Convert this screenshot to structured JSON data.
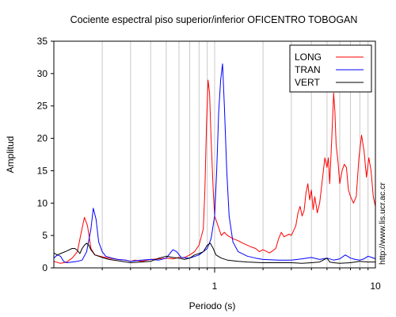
{
  "chart_data": {
    "type": "line",
    "title": "Cociente espectral piso superior/inferior OFICENTRO TOBOGAN",
    "xlabel": "Periodo (s)",
    "ylabel": "Amplitud",
    "xscale": "log",
    "xlim": [
      0.1,
      10
    ],
    "ylim": [
      0,
      35
    ],
    "x_tick_labels": [
      {
        "value": 1,
        "label": "1"
      },
      {
        "value": 10,
        "label": "10"
      }
    ],
    "y_ticks": [
      0,
      5,
      10,
      15,
      20,
      25,
      30,
      35
    ],
    "grid": "vertical log decade lines",
    "legend_position": "top-right",
    "watermark": "http://www.lis.ucr.ac.cr",
    "series": [
      {
        "name": "LONG",
        "color": "#ff0000",
        "points": [
          [
            0.1,
            1.0
          ],
          [
            0.11,
            0.7
          ],
          [
            0.12,
            0.9
          ],
          [
            0.13,
            1.5
          ],
          [
            0.14,
            2.5
          ],
          [
            0.148,
            5.5
          ],
          [
            0.155,
            7.8
          ],
          [
            0.162,
            6.5
          ],
          [
            0.17,
            3.0
          ],
          [
            0.18,
            2.0
          ],
          [
            0.2,
            1.7
          ],
          [
            0.22,
            1.5
          ],
          [
            0.25,
            1.3
          ],
          [
            0.28,
            1.2
          ],
          [
            0.3,
            1.0
          ],
          [
            0.32,
            1.2
          ],
          [
            0.35,
            1.0
          ],
          [
            0.4,
            1.3
          ],
          [
            0.45,
            1.4
          ],
          [
            0.5,
            1.5
          ],
          [
            0.55,
            1.4
          ],
          [
            0.6,
            1.6
          ],
          [
            0.65,
            1.6
          ],
          [
            0.7,
            2.0
          ],
          [
            0.75,
            2.5
          ],
          [
            0.8,
            3.5
          ],
          [
            0.85,
            6.0
          ],
          [
            0.87,
            12.0
          ],
          [
            0.89,
            22.0
          ],
          [
            0.91,
            29.0
          ],
          [
            0.93,
            27.0
          ],
          [
            0.95,
            20.0
          ],
          [
            0.98,
            12.0
          ],
          [
            1.0,
            8.0
          ],
          [
            1.05,
            6.5
          ],
          [
            1.1,
            5.0
          ],
          [
            1.15,
            5.5
          ],
          [
            1.2,
            5.0
          ],
          [
            1.3,
            4.5
          ],
          [
            1.4,
            4.2
          ],
          [
            1.5,
            3.8
          ],
          [
            1.6,
            3.5
          ],
          [
            1.7,
            3.2
          ],
          [
            1.8,
            3.0
          ],
          [
            1.9,
            2.5
          ],
          [
            2.0,
            2.8
          ],
          [
            2.2,
            2.3
          ],
          [
            2.4,
            3.0
          ],
          [
            2.5,
            4.5
          ],
          [
            2.6,
            5.5
          ],
          [
            2.7,
            4.8
          ],
          [
            2.9,
            5.2
          ],
          [
            3.0,
            5.0
          ],
          [
            3.2,
            6.5
          ],
          [
            3.3,
            8.5
          ],
          [
            3.4,
            9.5
          ],
          [
            3.5,
            8.0
          ],
          [
            3.6,
            8.8
          ],
          [
            3.7,
            11.5
          ],
          [
            3.8,
            13.0
          ],
          [
            3.9,
            10.5
          ],
          [
            4.0,
            12.0
          ],
          [
            4.1,
            9.0
          ],
          [
            4.2,
            11.0
          ],
          [
            4.35,
            8.5
          ],
          [
            4.5,
            10.0
          ],
          [
            4.7,
            14.0
          ],
          [
            4.85,
            17.0
          ],
          [
            5.0,
            15.5
          ],
          [
            5.1,
            17.0
          ],
          [
            5.2,
            13.0
          ],
          [
            5.35,
            20.0
          ],
          [
            5.5,
            27.0
          ],
          [
            5.6,
            24.0
          ],
          [
            5.7,
            19.0
          ],
          [
            5.85,
            16.5
          ],
          [
            6.0,
            13.0
          ],
          [
            6.2,
            15.0
          ],
          [
            6.4,
            16.0
          ],
          [
            6.6,
            15.5
          ],
          [
            6.8,
            12.0
          ],
          [
            7.0,
            11.0
          ],
          [
            7.3,
            10.0
          ],
          [
            7.6,
            11.0
          ],
          [
            7.9,
            17.0
          ],
          [
            8.2,
            20.5
          ],
          [
            8.5,
            18.0
          ],
          [
            8.8,
            14.0
          ],
          [
            9.1,
            17.0
          ],
          [
            9.4,
            15.0
          ],
          [
            9.7,
            11.0
          ],
          [
            10.0,
            9.5
          ]
        ]
      },
      {
        "name": "TRAN",
        "color": "#0000ff",
        "points": [
          [
            0.1,
            1.5
          ],
          [
            0.105,
            2.0
          ],
          [
            0.11,
            1.8
          ],
          [
            0.115,
            1.0
          ],
          [
            0.12,
            0.8
          ],
          [
            0.13,
            0.9
          ],
          [
            0.14,
            1.0
          ],
          [
            0.15,
            1.2
          ],
          [
            0.16,
            2.5
          ],
          [
            0.17,
            6.0
          ],
          [
            0.176,
            9.2
          ],
          [
            0.183,
            7.5
          ],
          [
            0.19,
            4.0
          ],
          [
            0.2,
            2.5
          ],
          [
            0.21,
            1.8
          ],
          [
            0.23,
            1.5
          ],
          [
            0.25,
            1.3
          ],
          [
            0.28,
            1.2
          ],
          [
            0.3,
            1.0
          ],
          [
            0.35,
            1.2
          ],
          [
            0.4,
            1.3
          ],
          [
            0.45,
            1.2
          ],
          [
            0.5,
            1.5
          ],
          [
            0.55,
            2.8
          ],
          [
            0.58,
            2.5
          ],
          [
            0.62,
            1.6
          ],
          [
            0.7,
            1.5
          ],
          [
            0.8,
            2.0
          ],
          [
            0.85,
            2.5
          ],
          [
            0.9,
            3.0
          ],
          [
            0.95,
            4.5
          ],
          [
            1.0,
            8.0
          ],
          [
            1.03,
            15.0
          ],
          [
            1.06,
            24.0
          ],
          [
            1.09,
            29.0
          ],
          [
            1.12,
            31.5
          ],
          [
            1.15,
            25.0
          ],
          [
            1.19,
            15.0
          ],
          [
            1.23,
            8.0
          ],
          [
            1.3,
            4.0
          ],
          [
            1.4,
            2.5
          ],
          [
            1.6,
            1.8
          ],
          [
            1.8,
            1.5
          ],
          [
            2.0,
            1.3
          ],
          [
            2.5,
            1.2
          ],
          [
            3.0,
            1.2
          ],
          [
            3.5,
            1.4
          ],
          [
            4.0,
            1.6
          ],
          [
            4.5,
            1.3
          ],
          [
            5.0,
            1.5
          ],
          [
            5.5,
            1.2
          ],
          [
            6.0,
            1.4
          ],
          [
            6.5,
            2.0
          ],
          [
            7.0,
            1.5
          ],
          [
            7.5,
            1.3
          ],
          [
            8.0,
            1.2
          ],
          [
            8.5,
            1.4
          ],
          [
            9.0,
            1.8
          ],
          [
            9.5,
            1.6
          ],
          [
            10.0,
            1.4
          ]
        ]
      },
      {
        "name": "VERT",
        "color": "#000000",
        "points": [
          [
            0.1,
            2.3
          ],
          [
            0.105,
            2.0
          ],
          [
            0.11,
            2.2
          ],
          [
            0.115,
            2.4
          ],
          [
            0.12,
            2.6
          ],
          [
            0.125,
            2.8
          ],
          [
            0.13,
            3.0
          ],
          [
            0.135,
            3.0
          ],
          [
            0.14,
            2.7
          ],
          [
            0.145,
            2.2
          ],
          [
            0.15,
            3.0
          ],
          [
            0.155,
            3.5
          ],
          [
            0.16,
            3.8
          ],
          [
            0.165,
            3.5
          ],
          [
            0.17,
            2.8
          ],
          [
            0.18,
            2.0
          ],
          [
            0.2,
            1.6
          ],
          [
            0.22,
            1.3
          ],
          [
            0.25,
            1.1
          ],
          [
            0.3,
            0.8
          ],
          [
            0.35,
            0.9
          ],
          [
            0.4,
            1.0
          ],
          [
            0.45,
            1.5
          ],
          [
            0.5,
            1.8
          ],
          [
            0.55,
            1.6
          ],
          [
            0.6,
            1.5
          ],
          [
            0.65,
            1.3
          ],
          [
            0.7,
            1.5
          ],
          [
            0.75,
            2.0
          ],
          [
            0.8,
            2.2
          ],
          [
            0.85,
            2.5
          ],
          [
            0.9,
            3.5
          ],
          [
            0.94,
            3.8
          ],
          [
            0.98,
            3.0
          ],
          [
            1.02,
            2.0
          ],
          [
            1.1,
            1.5
          ],
          [
            1.2,
            1.2
          ],
          [
            1.4,
            1.0
          ],
          [
            1.6,
            0.9
          ],
          [
            2.0,
            0.8
          ],
          [
            2.5,
            0.8
          ],
          [
            3.0,
            0.8
          ],
          [
            3.5,
            0.7
          ],
          [
            4.0,
            0.8
          ],
          [
            4.5,
            0.9
          ],
          [
            5.0,
            1.5
          ],
          [
            5.2,
            0.9
          ],
          [
            5.5,
            0.8
          ],
          [
            6.0,
            0.7
          ],
          [
            7.0,
            0.8
          ],
          [
            8.0,
            1.0
          ],
          [
            9.0,
            0.9
          ],
          [
            10.0,
            0.9
          ]
        ]
      }
    ]
  }
}
